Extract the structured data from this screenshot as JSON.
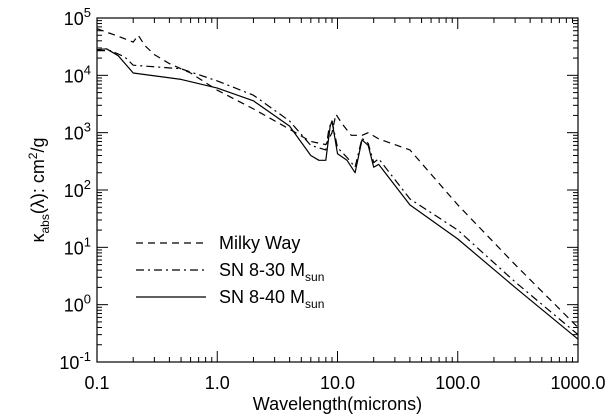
{
  "chart_data": {
    "type": "line",
    "xscale": "log",
    "yscale": "log",
    "xlim": [
      0.1,
      1000
    ],
    "ylim": [
      0.1,
      100000
    ],
    "xlabel": "Wavelength(microns)",
    "ylabel": {
      "prefix": "κ",
      "sub": "abs",
      "mid": "(λ): cm",
      "sup": "2",
      "suffix": "/g"
    },
    "xticks": [
      {
        "value": 0.1,
        "label": "0.1"
      },
      {
        "value": 1,
        "label": "1.0"
      },
      {
        "value": 10,
        "label": "10.0"
      },
      {
        "value": 100,
        "label": "100.0"
      },
      {
        "value": 1000,
        "label": "1000.0"
      }
    ],
    "yticks": [
      {
        "value": 100000,
        "base": "10",
        "exp": "5"
      },
      {
        "value": 10000,
        "base": "10",
        "exp": "4"
      },
      {
        "value": 1000,
        "base": "10",
        "exp": "3"
      },
      {
        "value": 100,
        "base": "10",
        "exp": "2"
      },
      {
        "value": 10,
        "base": "10",
        "exp": "1"
      },
      {
        "value": 1,
        "base": "10",
        "exp": "0"
      },
      {
        "value": 0.1,
        "base": "10",
        "exp": "-1"
      }
    ],
    "grid": false,
    "legend_position": "lower-left",
    "series": [
      {
        "name": "Milky Way",
        "label_main": "Milky Way",
        "label_sub": "",
        "dash": "dashed",
        "points": [
          [
            0.1,
            65000
          ],
          [
            0.15,
            48000
          ],
          [
            0.2,
            38000
          ],
          [
            0.22,
            50000
          ],
          [
            0.25,
            33000
          ],
          [
            0.3,
            23000
          ],
          [
            0.4,
            16000
          ],
          [
            0.6,
            11000
          ],
          [
            1.0,
            5500
          ],
          [
            2.0,
            2600
          ],
          [
            4.0,
            1150
          ],
          [
            6.0,
            700
          ],
          [
            8.0,
            620
          ],
          [
            9.0,
            1000
          ],
          [
            9.7,
            2100
          ],
          [
            11.0,
            1400
          ],
          [
            13.0,
            900
          ],
          [
            16.0,
            900
          ],
          [
            18.0,
            1000
          ],
          [
            22.0,
            780
          ],
          [
            40.0,
            500
          ],
          [
            100.0,
            55
          ],
          [
            300.0,
            5
          ],
          [
            1000.0,
            0.4
          ]
        ]
      },
      {
        "name": "SN 8-30 Msun",
        "label_main": "SN 8-30 M",
        "label_sub": "sun",
        "dash": "dashdot",
        "points": [
          [
            0.1,
            27000
          ],
          [
            0.13,
            27000
          ],
          [
            0.17,
            21000
          ],
          [
            0.2,
            15000
          ],
          [
            0.5,
            13000
          ],
          [
            1.0,
            8000
          ],
          [
            2.0,
            4500
          ],
          [
            4.0,
            1600
          ],
          [
            6.0,
            600
          ],
          [
            8.0,
            500
          ],
          [
            8.5,
            1200
          ],
          [
            9.0,
            1600
          ],
          [
            10.0,
            550
          ],
          [
            12.0,
            370
          ],
          [
            14.0,
            250
          ],
          [
            16.0,
            800
          ],
          [
            18.0,
            650
          ],
          [
            20.0,
            300
          ],
          [
            22.0,
            350
          ],
          [
            40.0,
            70
          ],
          [
            100.0,
            20
          ],
          [
            300.0,
            2.5
          ],
          [
            1000.0,
            0.3
          ]
        ]
      },
      {
        "name": "SN 8-40 Msun",
        "label_main": "SN 8-40 M",
        "label_sub": "sun",
        "dash": "solid",
        "points": [
          [
            0.1,
            28000
          ],
          [
            0.12,
            29000
          ],
          [
            0.15,
            22000
          ],
          [
            0.2,
            11000
          ],
          [
            0.5,
            8500
          ],
          [
            1.0,
            6000
          ],
          [
            2.0,
            3600
          ],
          [
            4.0,
            1300
          ],
          [
            6.0,
            400
          ],
          [
            7.0,
            330
          ],
          [
            8.0,
            330
          ],
          [
            8.7,
            1300
          ],
          [
            9.0,
            1600
          ],
          [
            10.0,
            430
          ],
          [
            12.0,
            330
          ],
          [
            14.0,
            200
          ],
          [
            16.0,
            750
          ],
          [
            18.0,
            600
          ],
          [
            20.0,
            250
          ],
          [
            22.0,
            280
          ],
          [
            40.0,
            55
          ],
          [
            100.0,
            14
          ],
          [
            300.0,
            2
          ],
          [
            1000.0,
            0.25
          ]
        ]
      }
    ]
  }
}
